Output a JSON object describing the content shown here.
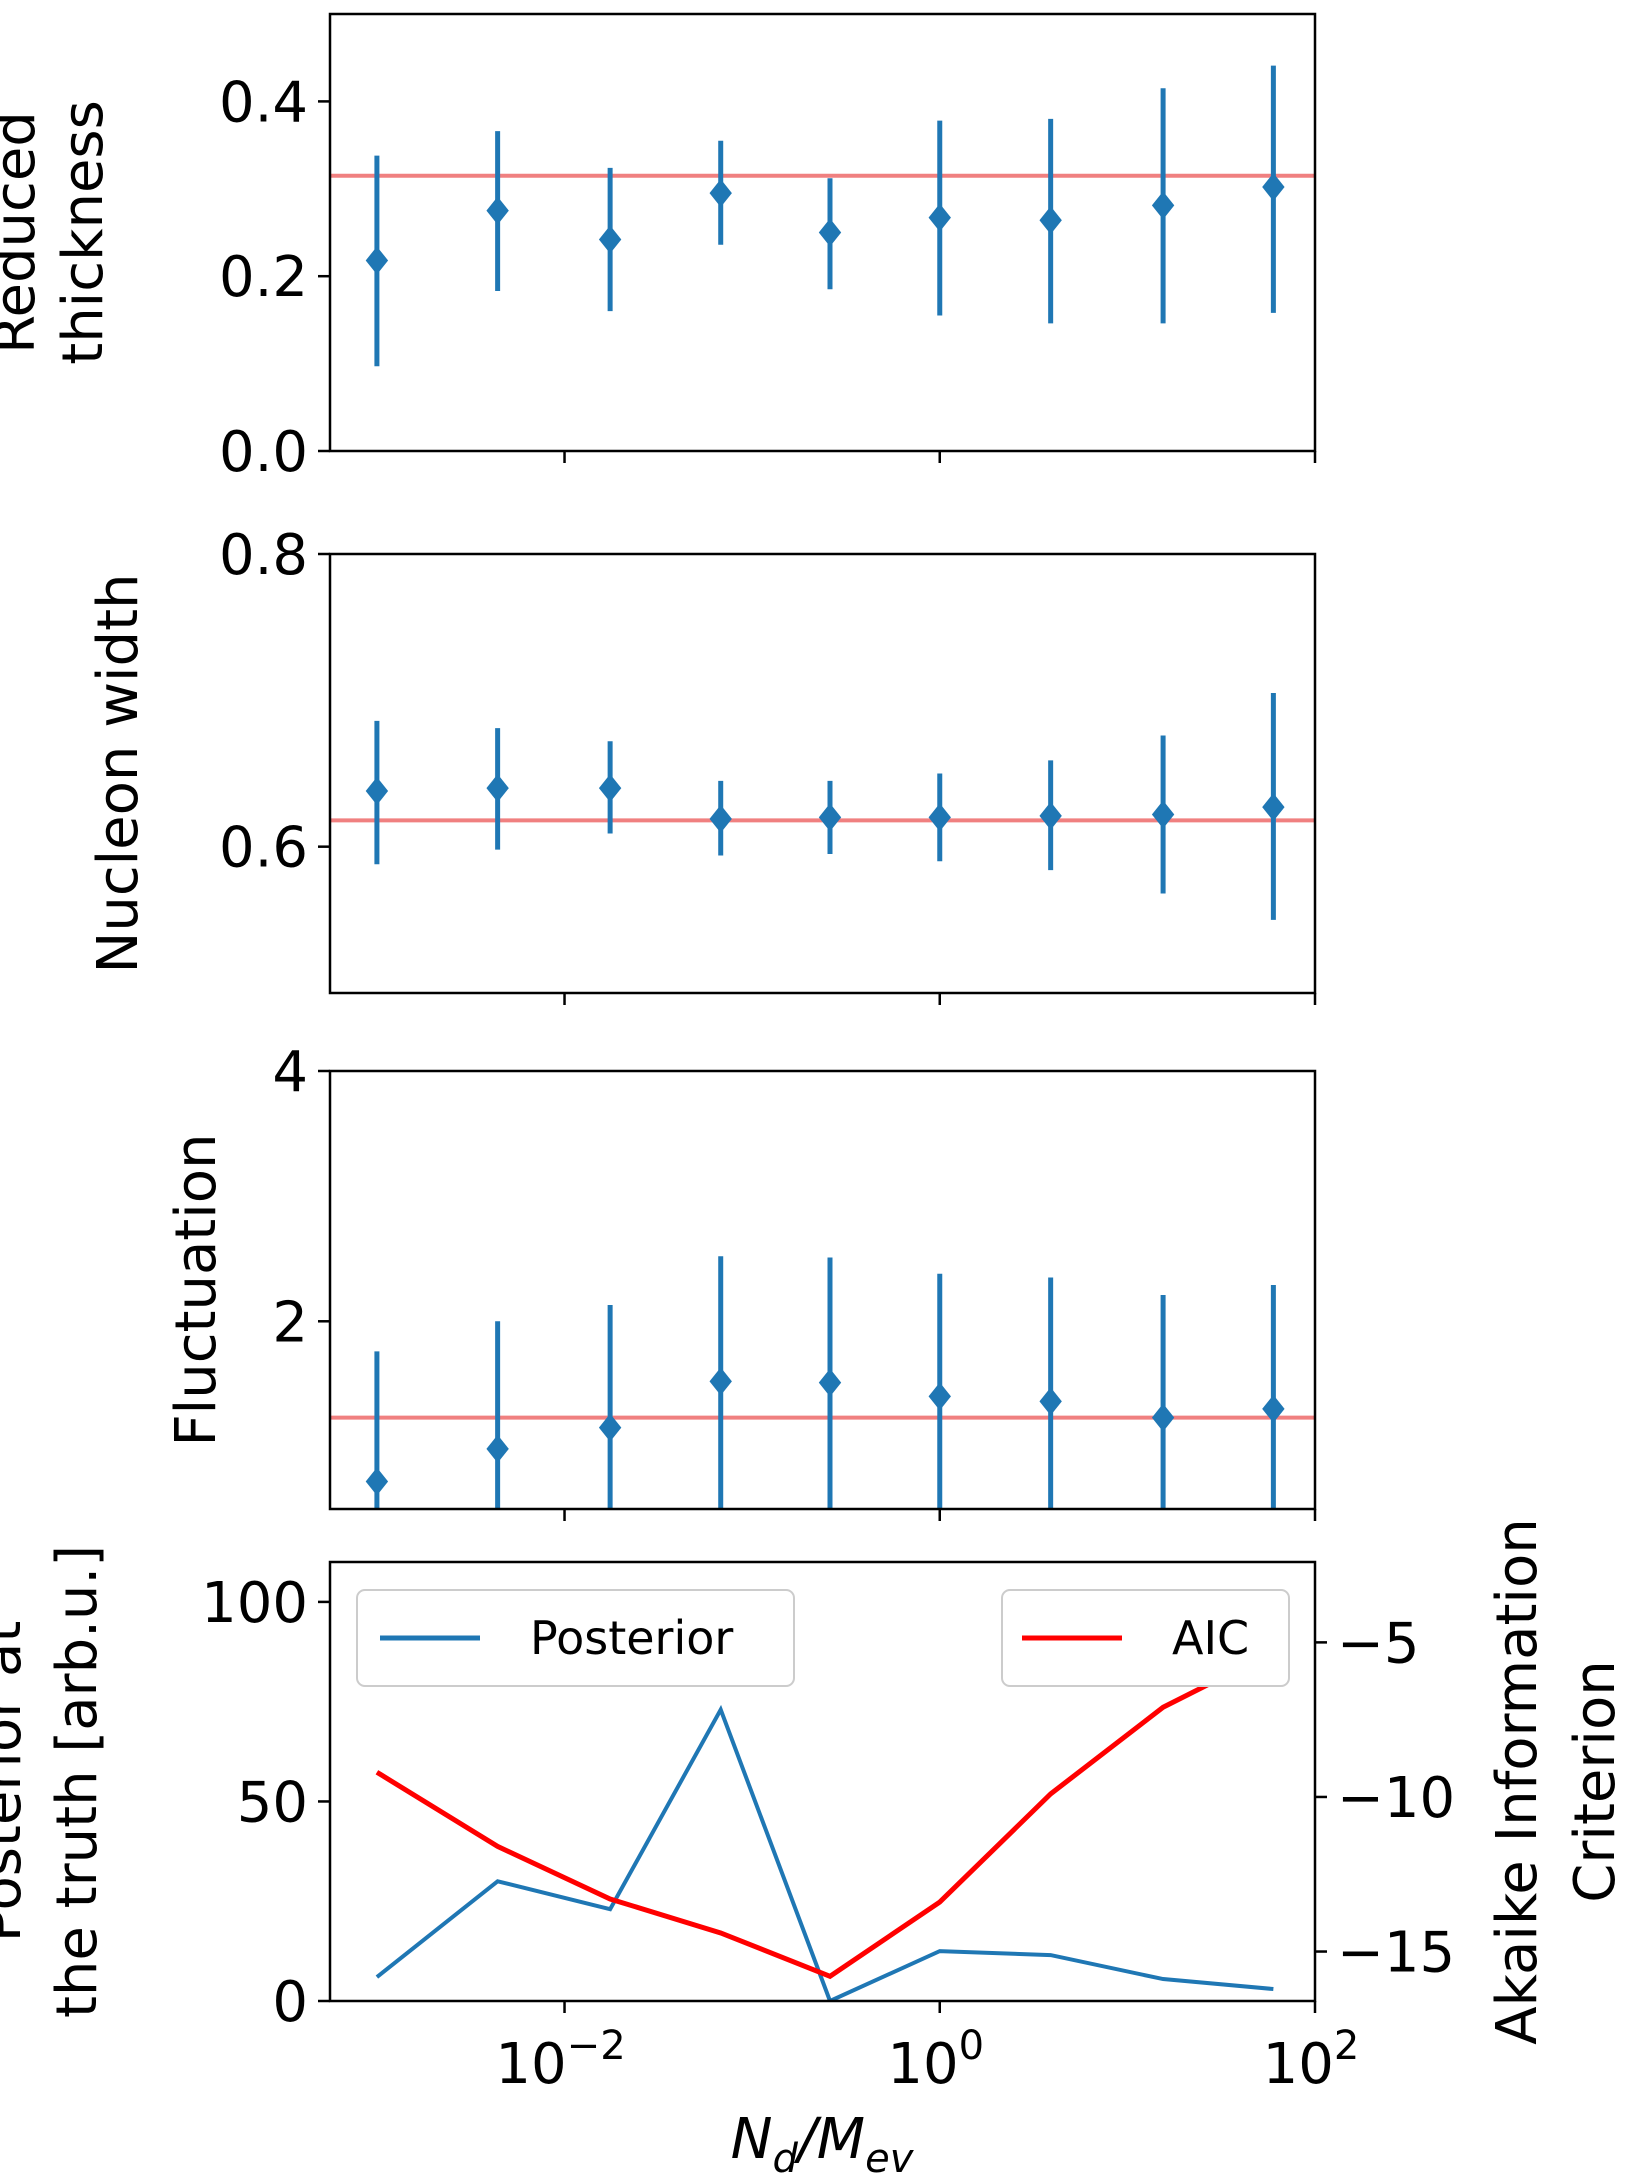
{
  "figure": {
    "xlabel": "N_d/M_ev",
    "xscale": "log",
    "xlim_log10": [
      -3.25,
      2.0
    ],
    "x_tick_labels": [
      {
        "base": "10",
        "exp": "−2",
        "value": 0.01
      },
      {
        "base": "10",
        "exp": "0",
        "value": 1
      },
      {
        "base": "10",
        "exp": "2",
        "value": 100
      }
    ],
    "colors": {
      "points": "#1f77b4",
      "truth_line": "#f08080",
      "posterior": "#1f77b4",
      "aic": "#ff0000"
    }
  },
  "chart_data": [
    {
      "type": "scatter",
      "ylabel_lines": [
        "Reduced",
        "thickness"
      ],
      "ylim": [
        0.0,
        0.5
      ],
      "yticks": [
        "0.0",
        "0.2",
        "0.4"
      ],
      "ytick_values": [
        0.0,
        0.2,
        0.4
      ],
      "truth": 0.315,
      "x": [
        0.001,
        0.0044,
        0.0175,
        0.068,
        0.26,
        1.0,
        3.9,
        15.5,
        60
      ],
      "y": [
        0.218,
        0.275,
        0.242,
        0.295,
        0.25,
        0.267,
        0.264,
        0.281,
        0.302
      ],
      "yerr_low": [
        0.097,
        0.183,
        0.16,
        0.236,
        0.185,
        0.155,
        0.146,
        0.146,
        0.158
      ],
      "yerr_high": [
        0.338,
        0.366,
        0.324,
        0.355,
        0.312,
        0.378,
        0.38,
        0.415,
        0.441
      ]
    },
    {
      "type": "scatter",
      "ylabel_lines": [
        "Nucleon width"
      ],
      "ylim": [
        0.5,
        0.8
      ],
      "yticks": [
        "0.6",
        "0.8"
      ],
      "ytick_values": [
        0.6,
        0.8
      ],
      "truth": 0.618,
      "x": [
        0.001,
        0.0044,
        0.0175,
        0.068,
        0.26,
        1.0,
        3.9,
        15.5,
        60
      ],
      "y": [
        0.638,
        0.64,
        0.64,
        0.619,
        0.62,
        0.62,
        0.621,
        0.622,
        0.627
      ],
      "yerr_low": [
        0.588,
        0.598,
        0.609,
        0.594,
        0.595,
        0.59,
        0.584,
        0.568,
        0.55
      ],
      "yerr_high": [
        0.686,
        0.681,
        0.672,
        0.645,
        0.645,
        0.65,
        0.659,
        0.676,
        0.705
      ]
    },
    {
      "type": "scatter",
      "ylabel_lines": [
        "Fluctuation"
      ],
      "ylim": [
        0.5,
        4.0
      ],
      "yticks": [
        "2",
        "4"
      ],
      "ytick_values": [
        2,
        4
      ],
      "truth": 1.23,
      "x": [
        0.001,
        0.0044,
        0.0175,
        0.068,
        0.26,
        1.0,
        3.9,
        15.5,
        60
      ],
      "y": [
        0.72,
        0.98,
        1.15,
        1.52,
        1.51,
        1.4,
        1.36,
        1.23,
        1.3
      ],
      "yerr_low": [
        0.5,
        0.5,
        0.5,
        0.5,
        0.5,
        0.5,
        0.5,
        0.5,
        0.5
      ],
      "yerr_high": [
        1.76,
        2.0,
        2.13,
        2.52,
        2.51,
        2.38,
        2.35,
        2.21,
        2.29
      ]
    },
    {
      "type": "line",
      "ylabel_lines": [
        "Posterior at",
        "the truth [arb.u.]"
      ],
      "ylim": [
        0,
        110
      ],
      "yticks": [
        "0",
        "50",
        "100"
      ],
      "ytick_values": [
        0,
        50,
        100
      ],
      "y2label_lines": [
        "Akaike Information",
        "Criterion"
      ],
      "y2lim": [
        -16.6,
        -2.4
      ],
      "y2ticks": [
        "−15",
        "−10",
        "−5"
      ],
      "y2tick_values": [
        -15,
        -10,
        -5
      ],
      "x": [
        0.001,
        0.0044,
        0.0175,
        0.068,
        0.26,
        1.0,
        3.9,
        15.5,
        60
      ],
      "series": [
        {
          "name": "Posterior",
          "axis": "left",
          "values": [
            6,
            30,
            23,
            73,
            0,
            12.5,
            11.5,
            5.5,
            3
          ]
        },
        {
          "name": "AIC",
          "axis": "right",
          "values": [
            -9.2,
            -11.6,
            -13.3,
            -14.4,
            -15.8,
            -13.4,
            -9.9,
            -7.1,
            -5.3
          ]
        }
      ]
    }
  ]
}
